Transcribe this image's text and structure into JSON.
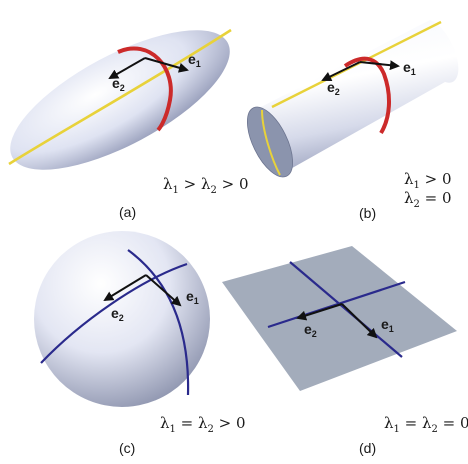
{
  "panels": [
    {
      "id": "a",
      "caption": "(a)",
      "shape": "ellipsoid",
      "curve_colors": [
        "#e8d23a",
        "#cc2a2a"
      ],
      "vectors": [
        {
          "base": "e",
          "sub": "1"
        },
        {
          "base": "e",
          "sub": "2"
        }
      ],
      "condition_lines": [
        [
          {
            "t": "λ"
          },
          {
            "s": "1"
          },
          {
            "t": " > λ"
          },
          {
            "s": "2"
          },
          {
            "t": " > 0"
          }
        ]
      ]
    },
    {
      "id": "b",
      "caption": "(b)",
      "shape": "cylinder",
      "curve_colors": [
        "#e8d23a",
        "#cc2a2a"
      ],
      "vectors": [
        {
          "base": "e",
          "sub": "1"
        },
        {
          "base": "e",
          "sub": "2"
        }
      ],
      "condition_lines": [
        [
          {
            "t": "λ"
          },
          {
            "s": "1"
          },
          {
            "t": " > 0"
          }
        ],
        [
          {
            "t": "λ"
          },
          {
            "s": "2"
          },
          {
            "t": " = 0"
          }
        ]
      ]
    },
    {
      "id": "c",
      "caption": "(c)",
      "shape": "sphere",
      "curve_colors": [
        "#2a2a8c",
        "#2a2a8c"
      ],
      "vectors": [
        {
          "base": "e",
          "sub": "1"
        },
        {
          "base": "e",
          "sub": "2"
        }
      ],
      "condition_lines": [
        [
          {
            "t": "λ"
          },
          {
            "s": "1"
          },
          {
            "t": " = λ"
          },
          {
            "s": "2"
          },
          {
            "t": " > 0"
          }
        ]
      ]
    },
    {
      "id": "d",
      "caption": "(d)",
      "shape": "plane",
      "curve_colors": [
        "#2a2a8c",
        "#2a2a8c"
      ],
      "vectors": [
        {
          "base": "e",
          "sub": "1"
        },
        {
          "base": "e",
          "sub": "2"
        }
      ],
      "condition_lines": [
        [
          {
            "t": "λ"
          },
          {
            "s": "1"
          },
          {
            "t": " = λ"
          },
          {
            "s": "2"
          },
          {
            "t": " = 0"
          }
        ]
      ]
    }
  ],
  "colors": {
    "surface_light": "#ffffff",
    "surface_dark": "#8f96b4",
    "plane": "#a3acbb",
    "arrow": "#111111"
  }
}
